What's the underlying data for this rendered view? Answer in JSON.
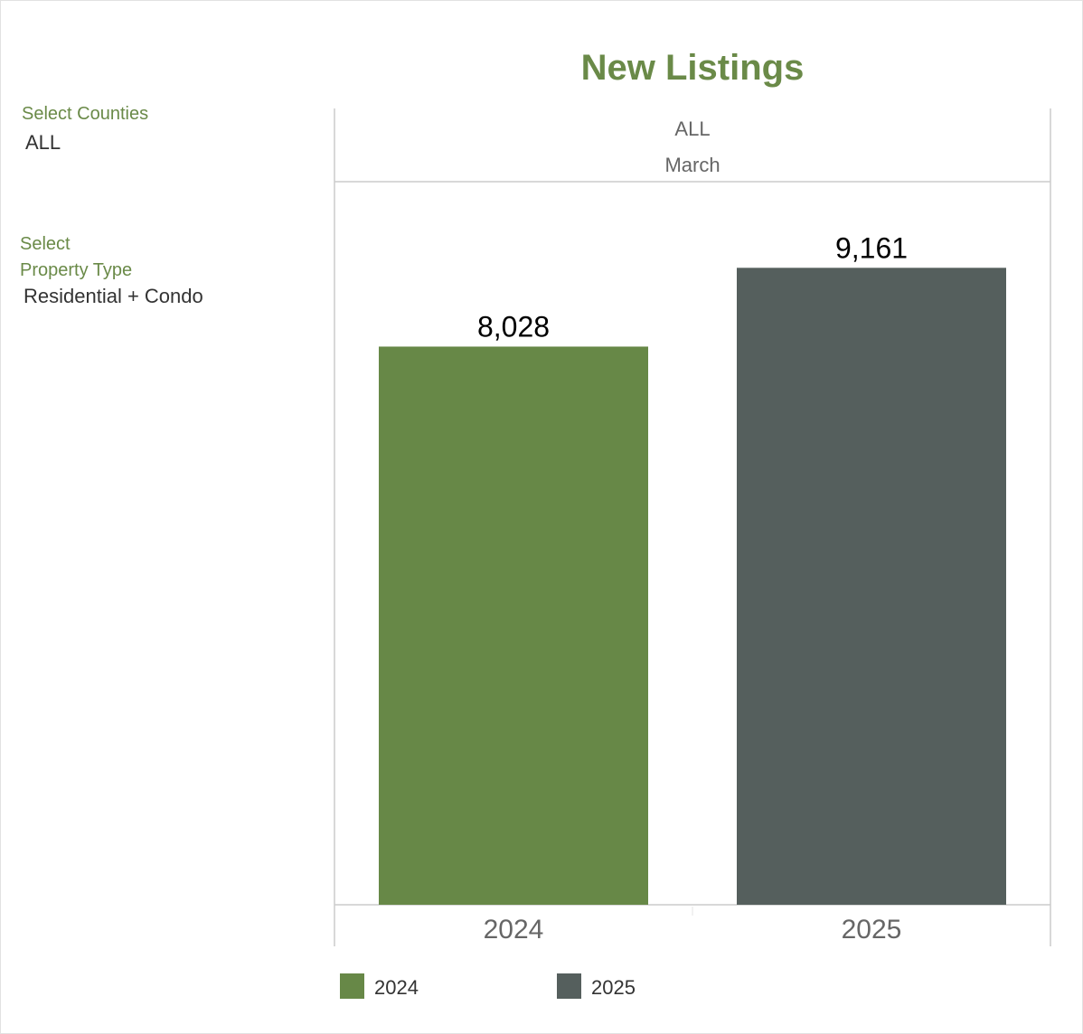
{
  "filters": {
    "counties": {
      "label": "Select Counties",
      "value": "ALL"
    },
    "property_type": {
      "label_line1": "Select",
      "label_line2": "Property Type",
      "value": "Residential + Condo"
    }
  },
  "colors": {
    "accent": "#6a8a48",
    "series_2024": "#678847",
    "series_2025": "#555f5d"
  },
  "chart_data": {
    "type": "bar",
    "title": "New Listings",
    "header": {
      "county": "ALL",
      "month": "March"
    },
    "categories": [
      "2024",
      "2025"
    ],
    "values": [
      8028,
      9161
    ],
    "value_labels": [
      "8,028",
      "9,161"
    ],
    "bar_colors": [
      "#678847",
      "#555f5d"
    ],
    "ylim": [
      0,
      10400
    ],
    "legend": [
      {
        "label": "2024",
        "color": "#678847"
      },
      {
        "label": "2025",
        "color": "#555f5d"
      }
    ],
    "legend_position": "bottom-left",
    "grid": false
  }
}
